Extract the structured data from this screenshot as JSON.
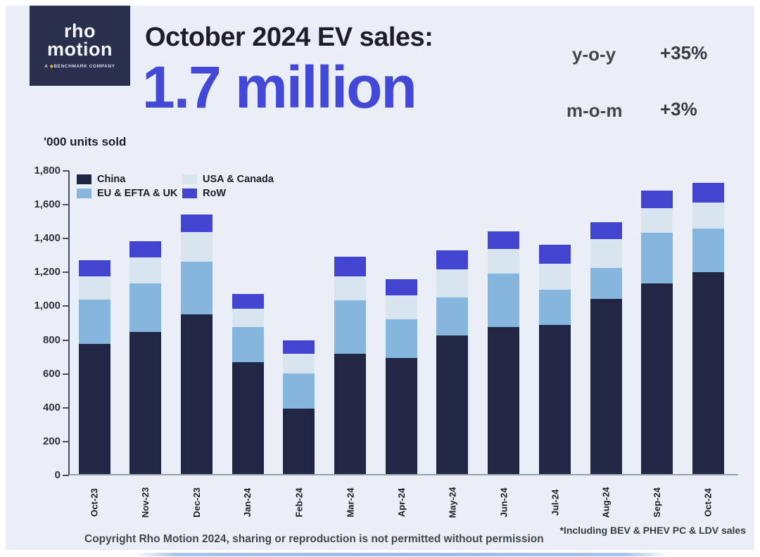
{
  "logo": {
    "line1": "rho",
    "line2": "motion",
    "tagline_prefix": "A ",
    "tagline_brand": "BENCHMARK",
    "tagline_suffix": " COMPANY"
  },
  "header": {
    "title": "October 2024 EV sales:",
    "headline": "1.7 million"
  },
  "stats": [
    {
      "label": "y-o-y",
      "value": "+35%"
    },
    {
      "label": "m-o-m",
      "value": "+3%"
    }
  ],
  "units_label": "'000 units sold",
  "footnote": "*Including BEV & PHEV PC & LDV sales",
  "copyright": "Copyright Rho Motion 2024, sharing or reproduction is not permitted without permission",
  "colors": {
    "panel_background": "#e9eef7",
    "headline_blue": "#4348d6",
    "dark_text": "#1d1d2b",
    "china": "#212645",
    "eu_efta_uk": "#85b6de",
    "usa_canada": "#d8e5ee",
    "row": "#4145cf",
    "logo_background": "#2b2f4e",
    "benchmark_yellow": "#f0b323"
  },
  "chart_data": {
    "type": "bar",
    "stacked": true,
    "title": "October 2024 EV sales: 1.7 million",
    "ylabel": "'000 units sold",
    "xlabel": "",
    "ylim": [
      0,
      1800
    ],
    "yticks": [
      "0",
      "200",
      "400",
      "600",
      "800",
      "1,000",
      "1,200",
      "1,400",
      "1,600",
      "1,800"
    ],
    "grid": false,
    "legend_position": "top-left-inside",
    "categories": [
      "Oct-23",
      "Nov-23",
      "Dec-23",
      "Jan-24",
      "Feb-24",
      "Mar-24",
      "Apr-24",
      "May-24",
      "Jun-24",
      "Jul-24",
      "Aug-24",
      "Sep-24",
      "Oct-24"
    ],
    "series": [
      {
        "name": "China",
        "color": "#212645",
        "values": [
          770,
          840,
          945,
          660,
          385,
          710,
          685,
          820,
          870,
          880,
          1035,
          1125,
          1195
        ]
      },
      {
        "name": "EU & EFTA & UK",
        "color": "#85b6de",
        "values": [
          260,
          285,
          310,
          210,
          210,
          315,
          230,
          225,
          315,
          210,
          185,
          300,
          255
        ]
      },
      {
        "name": "USA & Canada",
        "color": "#d8e5ee",
        "values": [
          140,
          155,
          175,
          105,
          115,
          145,
          140,
          165,
          145,
          155,
          170,
          145,
          155
        ]
      },
      {
        "name": "RoW",
        "color": "#4145cf",
        "values": [
          95,
          95,
          105,
          90,
          80,
          115,
          95,
          110,
          105,
          110,
          100,
          105,
          115
        ]
      }
    ],
    "totals": [
      1265,
      1375,
      1535,
      1065,
      790,
      1285,
      1150,
      1320,
      1435,
      1355,
      1490,
      1675,
      1720
    ],
    "legend": [
      {
        "label": "China",
        "color": "#212645"
      },
      {
        "label": "USA & Canada",
        "color": "#d8e5ee"
      },
      {
        "label": "EU & EFTA & UK",
        "color": "#85b6de"
      },
      {
        "label": "RoW",
        "color": "#4145cf"
      }
    ]
  }
}
